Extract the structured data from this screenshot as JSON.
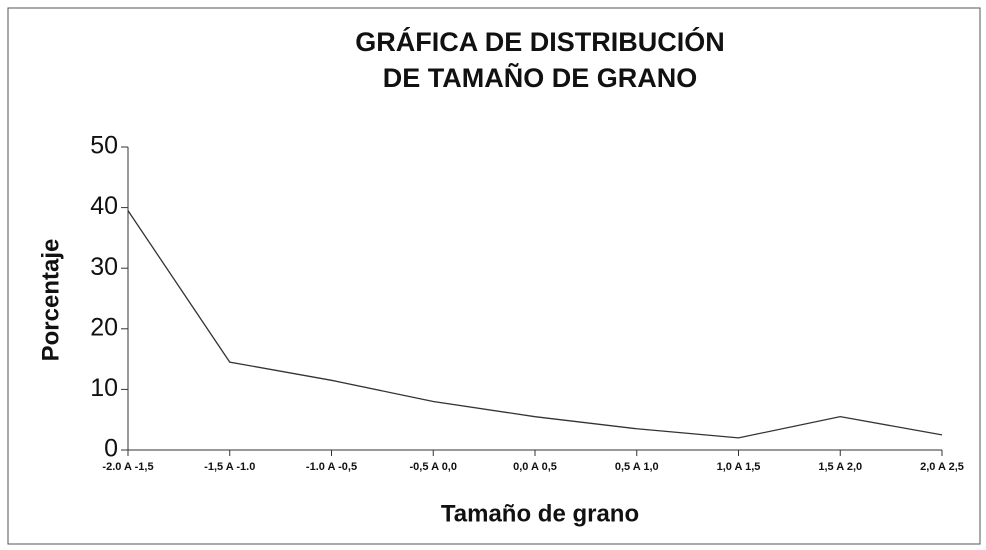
{
  "chart_data": {
    "type": "line",
    "title": [
      "GRÁFICA DE DISTRIBUCIÓN",
      "DE TAMAÑO DE GRANO"
    ],
    "x_label": "Tamaño de grano",
    "y_label": "Porcentaje",
    "categories": [
      "-2.0 A -1,5",
      "-1,5 A -1.0",
      "-1.0 A -0,5",
      "-0,5 A 0,0",
      "0,0 A 0,5",
      "0,5 A 1,0",
      "1,0 A 1,5",
      "1,5 A 2,0",
      "2,0 A 2,5"
    ],
    "values": [
      39.5,
      14.5,
      11.5,
      8,
      5.5,
      3.5,
      2,
      5.5,
      2.5
    ],
    "color": "#333333",
    "ylim": [
      0,
      50
    ],
    "yticks": [
      0,
      10,
      20,
      30,
      40,
      50
    ],
    "grid": false
  }
}
